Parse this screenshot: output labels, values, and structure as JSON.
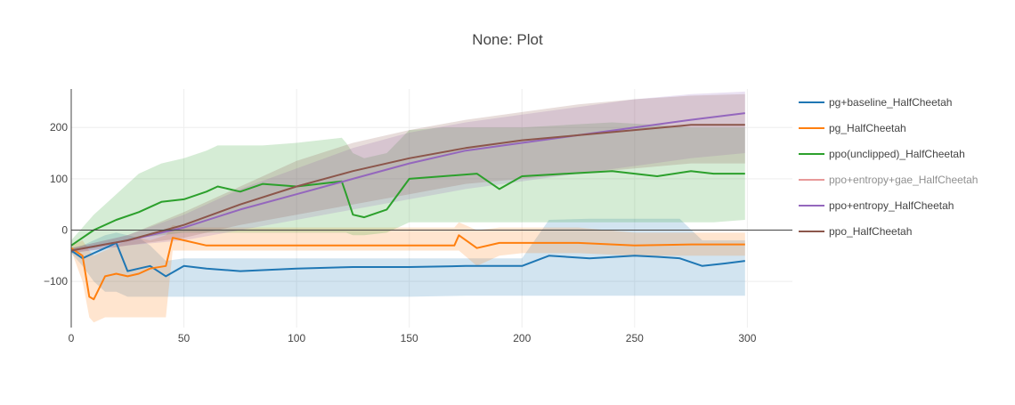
{
  "chart_data": {
    "type": "line",
    "title": "None: Plot",
    "xlabel": "",
    "ylabel": "",
    "xlim": [
      0,
      320
    ],
    "ylim": [
      -190,
      275
    ],
    "x_ticks": [
      0,
      50,
      100,
      150,
      200,
      250,
      300
    ],
    "y_ticks": [
      -100,
      0,
      100,
      200
    ],
    "grid": true,
    "legend_position": "right",
    "series": [
      {
        "name": "pg+baseline_HalfCheetah",
        "color": "#1f77b4",
        "x": [
          0,
          5,
          10,
          15,
          20,
          25,
          30,
          35,
          42,
          50,
          60,
          75,
          100,
          125,
          150,
          175,
          200,
          212,
          230,
          250,
          260,
          270,
          280,
          290,
          299
        ],
        "values": [
          -40,
          -55,
          -45,
          -35,
          -25,
          -80,
          -75,
          -70,
          -90,
          -70,
          -75,
          -80,
          -75,
          -72,
          -72,
          -70,
          -70,
          -50,
          -55,
          -50,
          -52,
          -55,
          -70,
          -65,
          -60
        ],
        "band_low": [
          -45,
          -70,
          -100,
          -120,
          -120,
          -130,
          -130,
          -130,
          -130,
          -130,
          -130,
          -130,
          -130,
          -130,
          -130,
          -128,
          -128,
          -128,
          -128,
          -128,
          -128,
          -128,
          -128,
          -128,
          -128
        ],
        "band_high": [
          -35,
          -30,
          -20,
          -10,
          -5,
          -10,
          -15,
          -30,
          -60,
          -55,
          -55,
          -55,
          -55,
          -55,
          -55,
          -55,
          -55,
          20,
          22,
          22,
          22,
          22,
          -20,
          -20,
          -20
        ]
      },
      {
        "name": "pg_HalfCheetah",
        "color": "#ff7f0e",
        "x": [
          0,
          5,
          8,
          10,
          15,
          20,
          25,
          30,
          35,
          42,
          45,
          50,
          60,
          75,
          100,
          125,
          150,
          170,
          172,
          180,
          190,
          200,
          225,
          250,
          275,
          299
        ],
        "values": [
          -35,
          -50,
          -130,
          -135,
          -90,
          -85,
          -90,
          -85,
          -75,
          -70,
          -15,
          -20,
          -30,
          -30,
          -30,
          -30,
          -30,
          -30,
          -10,
          -35,
          -25,
          -25,
          -25,
          -30,
          -28,
          -28
        ],
        "band_low": [
          -40,
          -100,
          -170,
          -180,
          -170,
          -170,
          -170,
          -170,
          -170,
          -170,
          -40,
          -40,
          -40,
          -40,
          -40,
          -40,
          -40,
          -40,
          -40,
          -70,
          -50,
          -45,
          -45,
          -50,
          -50,
          -50
        ],
        "band_high": [
          -30,
          -20,
          -40,
          -50,
          -40,
          -30,
          -20,
          -15,
          -20,
          -10,
          10,
          5,
          5,
          5,
          5,
          5,
          5,
          5,
          15,
          0,
          5,
          5,
          5,
          -5,
          -5,
          -5
        ]
      },
      {
        "name": "ppo(unclipped)_HalfCheetah",
        "color": "#2ca02c",
        "x": [
          0,
          10,
          20,
          30,
          40,
          50,
          60,
          65,
          75,
          85,
          100,
          110,
          120,
          122,
          125,
          130,
          140,
          150,
          165,
          180,
          190,
          200,
          220,
          240,
          260,
          275,
          285,
          299
        ],
        "values": [
          -30,
          0,
          20,
          35,
          55,
          60,
          75,
          85,
          75,
          90,
          85,
          90,
          95,
          70,
          30,
          25,
          40,
          100,
          105,
          110,
          80,
          105,
          110,
          115,
          105,
          115,
          110,
          110
        ],
        "band_low": [
          -40,
          -35,
          -25,
          -15,
          -10,
          -5,
          -5,
          -5,
          -5,
          -5,
          -5,
          -5,
          -5,
          -5,
          -10,
          -10,
          -5,
          15,
          15,
          15,
          15,
          15,
          15,
          15,
          15,
          15,
          15,
          20
        ],
        "band_high": [
          -20,
          30,
          70,
          110,
          130,
          140,
          155,
          165,
          165,
          165,
          170,
          175,
          180,
          170,
          150,
          140,
          150,
          195,
          200,
          200,
          200,
          200,
          205,
          210,
          205,
          200,
          200,
          200
        ]
      },
      {
        "name": "ppo+entropy+gae_HalfCheetah",
        "color": "#e89999",
        "x": [],
        "values": [],
        "band_low": [],
        "band_high": []
      },
      {
        "name": "ppo+entropy_HalfCheetah",
        "color": "#9467bd",
        "x": [
          0,
          25,
          50,
          75,
          100,
          125,
          150,
          175,
          200,
          225,
          250,
          275,
          299
        ],
        "values": [
          -40,
          -20,
          5,
          40,
          70,
          100,
          130,
          155,
          170,
          185,
          200,
          215,
          228
        ],
        "band_low": [
          -45,
          -30,
          -20,
          0,
          20,
          40,
          60,
          80,
          95,
          110,
          125,
          140,
          150
        ],
        "band_high": [
          -35,
          -10,
          30,
          80,
          120,
          160,
          190,
          210,
          225,
          240,
          255,
          265,
          270
        ]
      },
      {
        "name": "ppo_HalfCheetah",
        "color": "#8c564b",
        "x": [
          0,
          25,
          50,
          75,
          100,
          125,
          150,
          175,
          200,
          225,
          250,
          275,
          299
        ],
        "values": [
          -40,
          -20,
          10,
          50,
          85,
          115,
          140,
          160,
          175,
          185,
          195,
          205,
          205
        ],
        "band_low": [
          -45,
          -30,
          -15,
          10,
          30,
          50,
          70,
          90,
          100,
          110,
          120,
          130,
          130
        ],
        "band_high": [
          -35,
          -10,
          35,
          85,
          135,
          170,
          195,
          215,
          230,
          245,
          255,
          262,
          265
        ]
      }
    ]
  }
}
